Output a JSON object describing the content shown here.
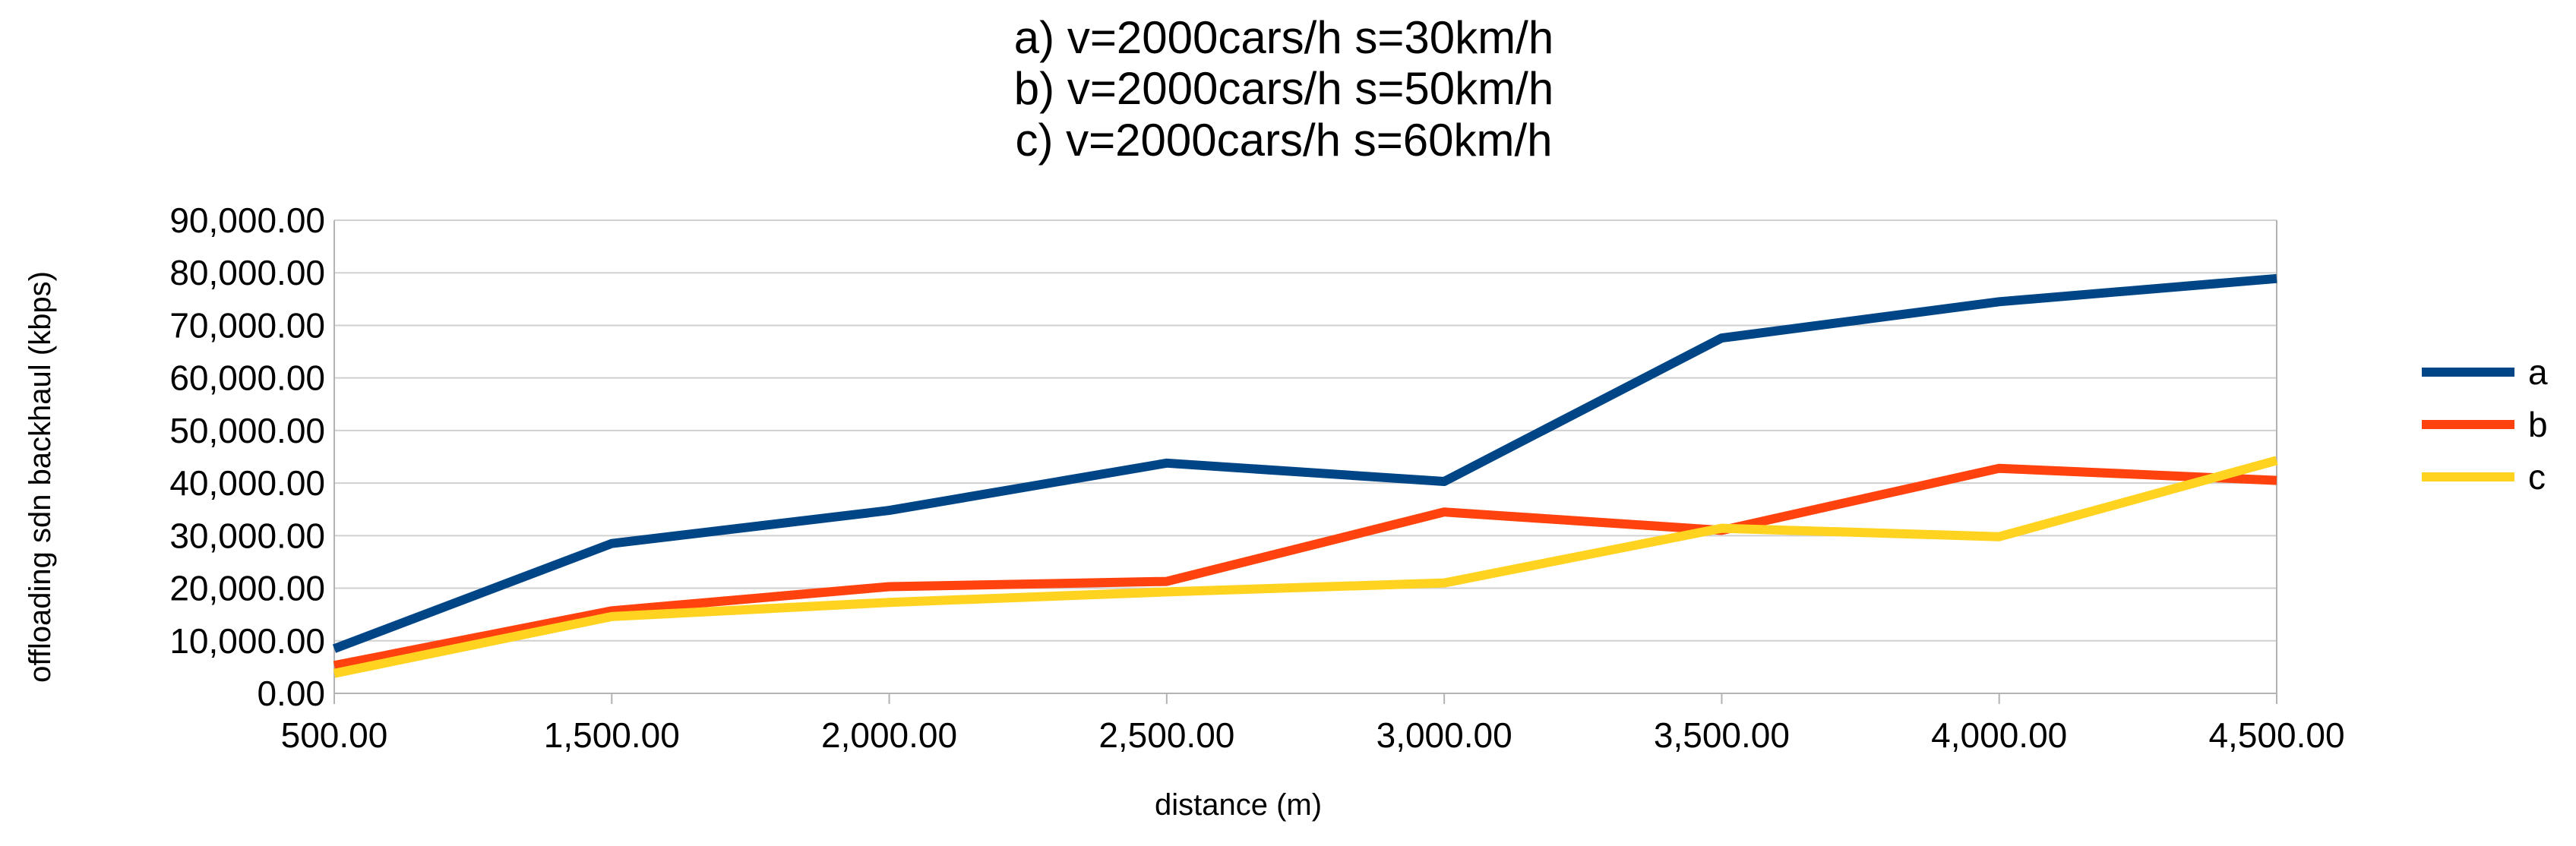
{
  "chart_data": {
    "type": "line",
    "title_lines": [
      "a) v=2000cars/h s=30km/h",
      "b) v=2000cars/h s=50km/h",
      "c) v=2000cars/h s=60km/h"
    ],
    "xlabel": "distance (m)",
    "ylabel": "offloading sdn backhaul (kbps)",
    "categories": [
      "500.00",
      "1,500.00",
      "2,000.00",
      "2,500.00",
      "3,000.00",
      "3,500.00",
      "4,000.00",
      "4,500.00"
    ],
    "y_ticks": [
      "0.00",
      "10,000.00",
      "20,000.00",
      "30,000.00",
      "40,000.00",
      "50,000.00",
      "60,000.00",
      "70,000.00",
      "80,000.00",
      "90,000.00"
    ],
    "ylim": [
      0,
      90000
    ],
    "grid": true,
    "legend_position": "right",
    "series": [
      {
        "name": "a",
        "color": "#004586",
        "values": [
          8500,
          28500,
          34800,
          43800,
          40300,
          67600,
          74500,
          78900
        ]
      },
      {
        "name": "b",
        "color": "#ff420e",
        "values": [
          5300,
          15700,
          20300,
          21300,
          34500,
          31000,
          42800,
          40500
        ]
      },
      {
        "name": "c",
        "color": "#ffd320",
        "values": [
          3800,
          14600,
          17300,
          19300,
          21000,
          31400,
          29800,
          44300
        ]
      }
    ]
  }
}
